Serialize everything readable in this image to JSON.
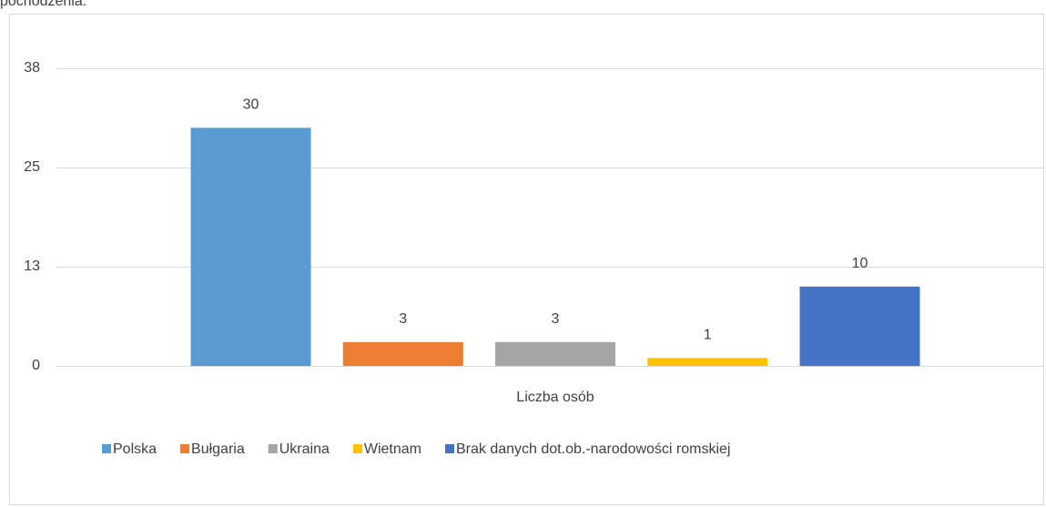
{
  "text_above": "pochodzenia.",
  "chart_data": {
    "type": "bar",
    "categories": [
      "Liczba osób"
    ],
    "series": [
      {
        "name": "Polska",
        "color": "#5b9bd5",
        "values": [
          30
        ]
      },
      {
        "name": "Bułgaria",
        "color": "#ed7d31",
        "values": [
          3
        ]
      },
      {
        "name": "Ukraina",
        "color": "#a5a5a5",
        "values": [
          3
        ]
      },
      {
        "name": "Wietnam",
        "color": "#ffc000",
        "values": [
          1
        ]
      },
      {
        "name": "Brak danych dot.ob.-narodowości romskiej",
        "color": "#4472c4",
        "values": [
          10
        ]
      }
    ],
    "ylim": [
      0,
      37.5
    ],
    "yticks": [
      0,
      {
        "value": 12.5,
        "label": "13"
      },
      25,
      {
        "value": 37.5,
        "label": "38"
      }
    ],
    "grid": true,
    "legend": "bottom"
  }
}
